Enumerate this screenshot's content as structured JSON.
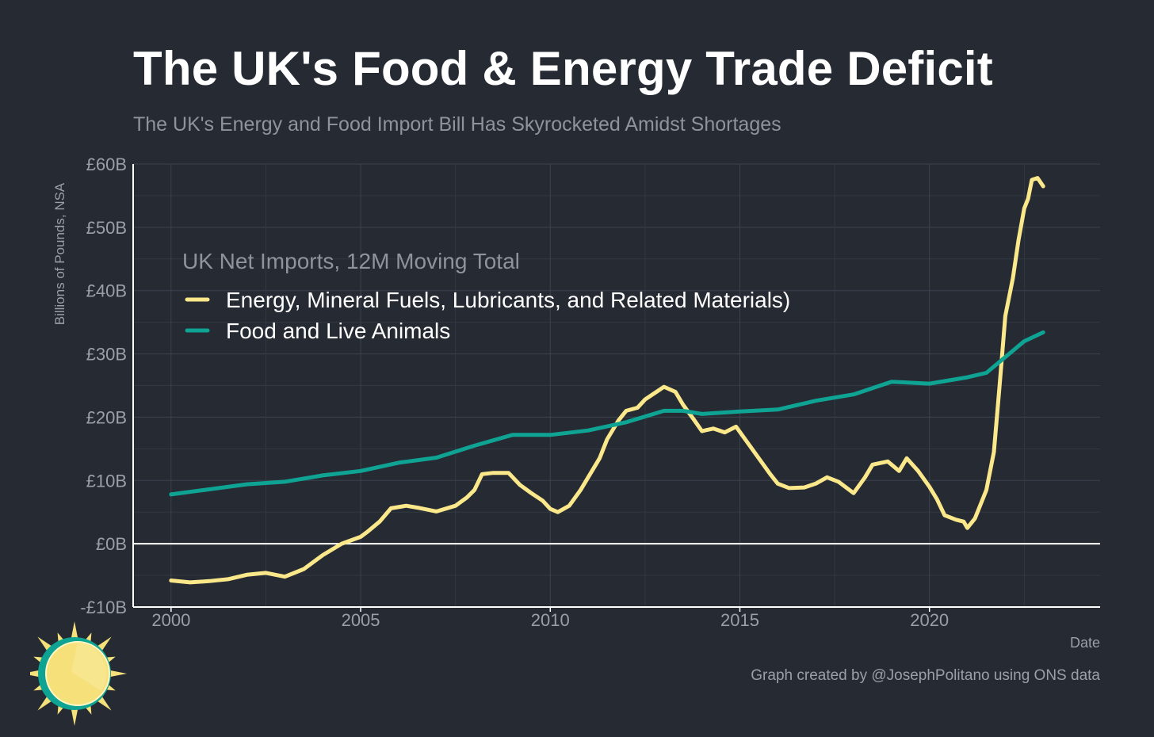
{
  "chart_data": {
    "type": "line",
    "title": "The UK's Food & Energy Trade Deficit",
    "subtitle": "The UK's Energy and Food Import Bill Has Skyrocketed Amidst Shortages",
    "xlabel": "Date",
    "ylabel": "Billions of Pounds, NSA",
    "xlim": [
      1999,
      2024.5
    ],
    "ylim": [
      -10,
      60
    ],
    "x_ticks": [
      2000,
      2005,
      2010,
      2015,
      2020
    ],
    "x_tick_labels": [
      "2000",
      "2005",
      "2010",
      "2015",
      "2020"
    ],
    "y_ticks": [
      -10,
      0,
      10,
      20,
      30,
      40,
      50,
      60
    ],
    "y_tick_labels": [
      "-£10B",
      "£0B",
      "£10B",
      "£20B",
      "£30B",
      "£40B",
      "£50B",
      "£60B"
    ],
    "grid": true,
    "zero_line": true,
    "legend": {
      "title": "UK Net Imports, 12M Moving Total",
      "position": "top-left"
    },
    "series": [
      {
        "name": "Energy, Mineral Fuels, Lubricants, and Related Materials)",
        "color": "#fbe88a",
        "points": [
          [
            2000.0,
            -5.8
          ],
          [
            2000.5,
            -6.1
          ],
          [
            2001.0,
            -5.9
          ],
          [
            2001.5,
            -5.6
          ],
          [
            2002.0,
            -4.9
          ],
          [
            2002.5,
            -4.6
          ],
          [
            2003.0,
            -5.2
          ],
          [
            2003.5,
            -4.0
          ],
          [
            2004.0,
            -1.8
          ],
          [
            2004.5,
            0.0
          ],
          [
            2005.0,
            1.1
          ],
          [
            2005.2,
            2.0
          ],
          [
            2005.5,
            3.5
          ],
          [
            2005.8,
            5.6
          ],
          [
            2006.2,
            6.0
          ],
          [
            2006.5,
            5.7
          ],
          [
            2007.0,
            5.1
          ],
          [
            2007.5,
            6.0
          ],
          [
            2007.8,
            7.3
          ],
          [
            2008.0,
            8.5
          ],
          [
            2008.2,
            11.0
          ],
          [
            2008.5,
            11.2
          ],
          [
            2008.9,
            11.2
          ],
          [
            2009.2,
            9.3
          ],
          [
            2009.5,
            8.0
          ],
          [
            2009.8,
            6.8
          ],
          [
            2010.0,
            5.5
          ],
          [
            2010.2,
            5.0
          ],
          [
            2010.5,
            6.0
          ],
          [
            2010.8,
            8.5
          ],
          [
            2011.0,
            10.5
          ],
          [
            2011.3,
            13.5
          ],
          [
            2011.5,
            16.5
          ],
          [
            2011.8,
            19.5
          ],
          [
            2012.0,
            21.0
          ],
          [
            2012.3,
            21.5
          ],
          [
            2012.5,
            22.8
          ],
          [
            2012.8,
            24.0
          ],
          [
            2013.0,
            24.8
          ],
          [
            2013.3,
            24.0
          ],
          [
            2013.5,
            22.0
          ],
          [
            2013.8,
            19.5
          ],
          [
            2014.0,
            17.8
          ],
          [
            2014.3,
            18.2
          ],
          [
            2014.6,
            17.6
          ],
          [
            2014.9,
            18.5
          ],
          [
            2015.2,
            16.0
          ],
          [
            2015.5,
            13.5
          ],
          [
            2015.8,
            11.0
          ],
          [
            2016.0,
            9.5
          ],
          [
            2016.3,
            8.8
          ],
          [
            2016.7,
            8.9
          ],
          [
            2017.0,
            9.5
          ],
          [
            2017.3,
            10.5
          ],
          [
            2017.6,
            9.8
          ],
          [
            2018.0,
            8.0
          ],
          [
            2018.3,
            10.5
          ],
          [
            2018.5,
            12.5
          ],
          [
            2018.9,
            13.0
          ],
          [
            2019.2,
            11.5
          ],
          [
            2019.4,
            13.5
          ],
          [
            2019.7,
            11.5
          ],
          [
            2020.0,
            9.0
          ],
          [
            2020.2,
            7.0
          ],
          [
            2020.4,
            4.5
          ],
          [
            2020.7,
            3.8
          ],
          [
            2020.9,
            3.5
          ],
          [
            2021.0,
            2.5
          ],
          [
            2021.2,
            4.0
          ],
          [
            2021.5,
            8.5
          ],
          [
            2021.7,
            14.5
          ],
          [
            2021.85,
            25.0
          ],
          [
            2022.0,
            36.0
          ],
          [
            2022.2,
            42.0
          ],
          [
            2022.35,
            48.0
          ],
          [
            2022.5,
            53.0
          ],
          [
            2022.6,
            54.5
          ],
          [
            2022.7,
            57.5
          ],
          [
            2022.85,
            57.8
          ],
          [
            2023.0,
            56.5
          ]
        ]
      },
      {
        "name": "Food and Live Animals",
        "color": "#0fa394",
        "points": [
          [
            2000.0,
            7.8
          ],
          [
            2001.0,
            8.6
          ],
          [
            2002.0,
            9.4
          ],
          [
            2003.0,
            9.8
          ],
          [
            2004.0,
            10.8
          ],
          [
            2005.0,
            11.5
          ],
          [
            2006.0,
            12.8
          ],
          [
            2007.0,
            13.6
          ],
          [
            2008.0,
            15.5
          ],
          [
            2009.0,
            17.2
          ],
          [
            2010.0,
            17.2
          ],
          [
            2011.0,
            17.9
          ],
          [
            2012.0,
            19.2
          ],
          [
            2013.0,
            21.0
          ],
          [
            2013.5,
            21.0
          ],
          [
            2014.0,
            20.5
          ],
          [
            2015.0,
            20.9
          ],
          [
            2016.0,
            21.2
          ],
          [
            2017.0,
            22.6
          ],
          [
            2018.0,
            23.6
          ],
          [
            2019.0,
            25.6
          ],
          [
            2020.0,
            25.3
          ],
          [
            2020.5,
            25.8
          ],
          [
            2021.0,
            26.3
          ],
          [
            2021.5,
            27.0
          ],
          [
            2022.0,
            29.5
          ],
          [
            2022.5,
            32.0
          ],
          [
            2023.0,
            33.4
          ]
        ]
      }
    ]
  },
  "credit": "Graph created by @JosephPolitano using ONS data",
  "logo": {
    "name": "sun-logo",
    "colors": {
      "sun": "#f5e07a",
      "ring": "#0fa394",
      "rays": "#f5e07a"
    }
  }
}
